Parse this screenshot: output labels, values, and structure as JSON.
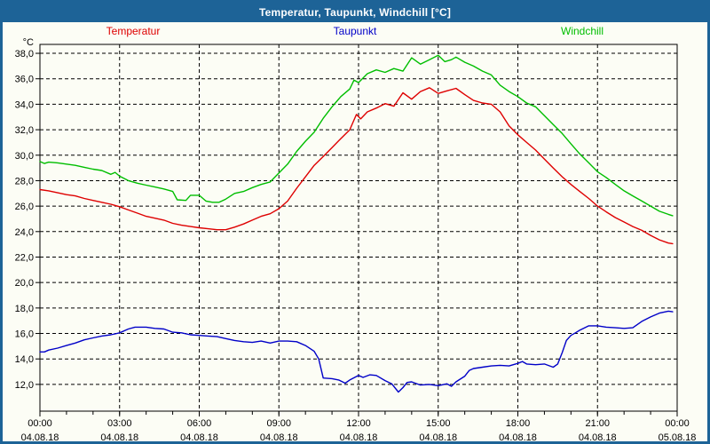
{
  "window": {
    "title": "Temperatur, Taupunkt, Windchill [°C]"
  },
  "colors": {
    "titlebar": "#1D6397",
    "window_border": "#1D6397",
    "background": "#FCFDF5",
    "axis": "#000000",
    "grid": "#000000",
    "temperatur": "#DE0000",
    "taupunkt": "#0000C8",
    "windchill": "#00BE00"
  },
  "legend": {
    "items": [
      {
        "id": "temperatur",
        "label": "Temperatur",
        "color": "#DE0000"
      },
      {
        "id": "taupunkt",
        "label": "Taupunkt",
        "color": "#0000C8"
      },
      {
        "id": "windchill",
        "label": "Windchill",
        "color": "#00BE00"
      }
    ]
  },
  "chart_data": {
    "type": "line",
    "title": "Temperatur, Taupunkt, Windchill [°C]",
    "xlabel": "",
    "ylabel": "°C",
    "grid": "dashed",
    "legend_position": "top",
    "xlim_hours": [
      0,
      24
    ],
    "ylim": [
      9.9,
      38.7
    ],
    "minor_tick_every_hours": 1,
    "yticks": [
      {
        "value": 38,
        "label": "38,0"
      },
      {
        "value": 36,
        "label": "36,0"
      },
      {
        "value": 34,
        "label": "34,0"
      },
      {
        "value": 32,
        "label": "32,0"
      },
      {
        "value": 30,
        "label": "30,0"
      },
      {
        "value": 28,
        "label": "28,0"
      },
      {
        "value": 26,
        "label": "26,0"
      },
      {
        "value": 24,
        "label": "24,0"
      },
      {
        "value": 22,
        "label": "22,0"
      },
      {
        "value": 20,
        "label": "20,0"
      },
      {
        "value": 18,
        "label": "18,0"
      },
      {
        "value": 16,
        "label": "16,0"
      },
      {
        "value": 14,
        "label": "14,0"
      },
      {
        "value": 12,
        "label": "12,0"
      }
    ],
    "xticks": [
      {
        "hour": 0,
        "time": "00:00",
        "date": "04.08.18"
      },
      {
        "hour": 3,
        "time": "03:00",
        "date": "04.08.18"
      },
      {
        "hour": 6,
        "time": "06:00",
        "date": "04.08.18"
      },
      {
        "hour": 9,
        "time": "09:00",
        "date": "04.08.18"
      },
      {
        "hour": 12,
        "time": "12:00",
        "date": "04.08.18"
      },
      {
        "hour": 15,
        "time": "15:00",
        "date": "04.08.18"
      },
      {
        "hour": 18,
        "time": "18:00",
        "date": "04.08.18"
      },
      {
        "hour": 21,
        "time": "21:00",
        "date": "04.08.18"
      },
      {
        "hour": 24,
        "time": "00:00",
        "date": "05.08.18"
      }
    ],
    "series": [
      {
        "name": "Temperatur",
        "color": "#DE0000",
        "points": [
          [
            0,
            27.3
          ],
          [
            0.33,
            27.2
          ],
          [
            0.67,
            27.05
          ],
          [
            1,
            26.9
          ],
          [
            1.33,
            26.8
          ],
          [
            1.67,
            26.6
          ],
          [
            2,
            26.45
          ],
          [
            2.33,
            26.3
          ],
          [
            2.67,
            26.15
          ],
          [
            3,
            25.95
          ],
          [
            3.33,
            25.7
          ],
          [
            3.67,
            25.45
          ],
          [
            4,
            25.2
          ],
          [
            4.33,
            25.05
          ],
          [
            4.67,
            24.9
          ],
          [
            5,
            24.65
          ],
          [
            5.33,
            24.5
          ],
          [
            5.67,
            24.4
          ],
          [
            6,
            24.3
          ],
          [
            6.33,
            24.22
          ],
          [
            6.67,
            24.15
          ],
          [
            7,
            24.15
          ],
          [
            7.33,
            24.35
          ],
          [
            7.67,
            24.6
          ],
          [
            8,
            24.9
          ],
          [
            8.33,
            25.2
          ],
          [
            8.67,
            25.4
          ],
          [
            9,
            25.8
          ],
          [
            9.33,
            26.4
          ],
          [
            9.67,
            27.4
          ],
          [
            10,
            28.3
          ],
          [
            10.33,
            29.2
          ],
          [
            10.67,
            29.9
          ],
          [
            11,
            30.6
          ],
          [
            11.33,
            31.3
          ],
          [
            11.67,
            32.0
          ],
          [
            11.92,
            33.2
          ],
          [
            12.08,
            32.85
          ],
          [
            12.33,
            33.4
          ],
          [
            12.67,
            33.7
          ],
          [
            13,
            34.05
          ],
          [
            13.33,
            33.85
          ],
          [
            13.67,
            34.9
          ],
          [
            14,
            34.4
          ],
          [
            14.33,
            35.0
          ],
          [
            14.67,
            35.3
          ],
          [
            15,
            34.85
          ],
          [
            15.33,
            35.05
          ],
          [
            15.67,
            35.25
          ],
          [
            16,
            34.75
          ],
          [
            16.33,
            34.3
          ],
          [
            16.67,
            34.1
          ],
          [
            17,
            34.0
          ],
          [
            17.33,
            33.4
          ],
          [
            17.67,
            32.3
          ],
          [
            18,
            31.6
          ],
          [
            18.33,
            31.0
          ],
          [
            18.67,
            30.4
          ],
          [
            19,
            29.7
          ],
          [
            19.33,
            29.0
          ],
          [
            19.67,
            28.3
          ],
          [
            20,
            27.7
          ],
          [
            20.33,
            27.15
          ],
          [
            20.67,
            26.6
          ],
          [
            21,
            26.0
          ],
          [
            21.33,
            25.55
          ],
          [
            21.67,
            25.1
          ],
          [
            22,
            24.75
          ],
          [
            22.33,
            24.4
          ],
          [
            22.67,
            24.1
          ],
          [
            23,
            23.7
          ],
          [
            23.33,
            23.35
          ],
          [
            23.67,
            23.1
          ],
          [
            23.83,
            23.05
          ]
        ]
      },
      {
        "name": "Taupunkt",
        "color": "#0000C8",
        "points": [
          [
            0,
            14.55
          ],
          [
            0.17,
            14.55
          ],
          [
            0.33,
            14.7
          ],
          [
            0.67,
            14.85
          ],
          [
            1,
            15.05
          ],
          [
            1.33,
            15.25
          ],
          [
            1.67,
            15.5
          ],
          [
            2,
            15.65
          ],
          [
            2.33,
            15.8
          ],
          [
            2.67,
            15.9
          ],
          [
            3,
            16.05
          ],
          [
            3.33,
            16.35
          ],
          [
            3.58,
            16.5
          ],
          [
            4,
            16.5
          ],
          [
            4.33,
            16.4
          ],
          [
            4.67,
            16.35
          ],
          [
            5,
            16.1
          ],
          [
            5.33,
            16.05
          ],
          [
            5.67,
            15.9
          ],
          [
            6,
            15.85
          ],
          [
            6.33,
            15.8
          ],
          [
            6.67,
            15.75
          ],
          [
            7,
            15.6
          ],
          [
            7.33,
            15.45
          ],
          [
            7.67,
            15.35
          ],
          [
            8,
            15.3
          ],
          [
            8.33,
            15.4
          ],
          [
            8.67,
            15.25
          ],
          [
            9,
            15.4
          ],
          [
            9.33,
            15.4
          ],
          [
            9.67,
            15.35
          ],
          [
            10,
            15.05
          ],
          [
            10.33,
            14.6
          ],
          [
            10.5,
            14.0
          ],
          [
            10.67,
            12.5
          ],
          [
            11,
            12.45
          ],
          [
            11.25,
            12.35
          ],
          [
            11.5,
            12.1
          ],
          [
            11.67,
            12.35
          ],
          [
            12,
            12.7
          ],
          [
            12.17,
            12.55
          ],
          [
            12.42,
            12.75
          ],
          [
            12.67,
            12.7
          ],
          [
            13,
            12.3
          ],
          [
            13.25,
            12.05
          ],
          [
            13.5,
            11.4
          ],
          [
            13.67,
            11.75
          ],
          [
            13.83,
            12.15
          ],
          [
            14,
            12.2
          ],
          [
            14.33,
            11.95
          ],
          [
            14.67,
            12.0
          ],
          [
            15,
            11.9
          ],
          [
            15.33,
            12.05
          ],
          [
            15.5,
            11.85
          ],
          [
            15.67,
            12.2
          ],
          [
            16,
            12.65
          ],
          [
            16.17,
            13.1
          ],
          [
            16.33,
            13.25
          ],
          [
            16.67,
            13.35
          ],
          [
            17,
            13.45
          ],
          [
            17.33,
            13.5
          ],
          [
            17.67,
            13.45
          ],
          [
            18,
            13.65
          ],
          [
            18.17,
            13.8
          ],
          [
            18.33,
            13.6
          ],
          [
            18.67,
            13.55
          ],
          [
            19,
            13.6
          ],
          [
            19.33,
            13.35
          ],
          [
            19.5,
            13.6
          ],
          [
            19.67,
            14.5
          ],
          [
            19.83,
            15.45
          ],
          [
            20,
            15.85
          ],
          [
            20.17,
            16.05
          ],
          [
            20.33,
            16.25
          ],
          [
            20.67,
            16.6
          ],
          [
            21,
            16.6
          ],
          [
            21.33,
            16.5
          ],
          [
            21.67,
            16.45
          ],
          [
            22,
            16.4
          ],
          [
            22.33,
            16.45
          ],
          [
            22.67,
            16.95
          ],
          [
            23,
            17.3
          ],
          [
            23.33,
            17.6
          ],
          [
            23.67,
            17.75
          ],
          [
            23.83,
            17.7
          ]
        ]
      },
      {
        "name": "Windchill",
        "color": "#00BE00",
        "points": [
          [
            0,
            29.5
          ],
          [
            0.17,
            29.35
          ],
          [
            0.33,
            29.45
          ],
          [
            0.67,
            29.4
          ],
          [
            1,
            29.3
          ],
          [
            1.33,
            29.2
          ],
          [
            1.67,
            29.05
          ],
          [
            2,
            28.9
          ],
          [
            2.33,
            28.8
          ],
          [
            2.67,
            28.5
          ],
          [
            2.83,
            28.65
          ],
          [
            3,
            28.35
          ],
          [
            3.33,
            28.0
          ],
          [
            3.67,
            27.8
          ],
          [
            4,
            27.65
          ],
          [
            4.33,
            27.5
          ],
          [
            4.67,
            27.35
          ],
          [
            5,
            27.15
          ],
          [
            5.17,
            26.5
          ],
          [
            5.5,
            26.45
          ],
          [
            5.67,
            26.85
          ],
          [
            6,
            26.85
          ],
          [
            6.25,
            26.4
          ],
          [
            6.5,
            26.3
          ],
          [
            6.75,
            26.3
          ],
          [
            7,
            26.55
          ],
          [
            7.33,
            27.0
          ],
          [
            7.67,
            27.15
          ],
          [
            8,
            27.45
          ],
          [
            8.33,
            27.7
          ],
          [
            8.67,
            27.9
          ],
          [
            9,
            28.6
          ],
          [
            9.33,
            29.3
          ],
          [
            9.67,
            30.3
          ],
          [
            10,
            31.1
          ],
          [
            10.33,
            31.8
          ],
          [
            10.67,
            32.9
          ],
          [
            11,
            33.8
          ],
          [
            11.33,
            34.6
          ],
          [
            11.67,
            35.2
          ],
          [
            11.83,
            35.9
          ],
          [
            12,
            35.7
          ],
          [
            12.33,
            36.4
          ],
          [
            12.67,
            36.7
          ],
          [
            13,
            36.5
          ],
          [
            13.33,
            36.8
          ],
          [
            13.67,
            36.6
          ],
          [
            14,
            37.65
          ],
          [
            14.33,
            37.15
          ],
          [
            14.67,
            37.5
          ],
          [
            15,
            37.85
          ],
          [
            15.25,
            37.35
          ],
          [
            15.5,
            37.5
          ],
          [
            15.67,
            37.7
          ],
          [
            16,
            37.3
          ],
          [
            16.33,
            37.0
          ],
          [
            16.67,
            36.6
          ],
          [
            17,
            36.3
          ],
          [
            17.33,
            35.5
          ],
          [
            17.67,
            35.0
          ],
          [
            18,
            34.6
          ],
          [
            18.33,
            34.1
          ],
          [
            18.67,
            33.8
          ],
          [
            19,
            33.1
          ],
          [
            19.33,
            32.4
          ],
          [
            19.67,
            31.7
          ],
          [
            20,
            30.9
          ],
          [
            20.33,
            30.1
          ],
          [
            20.67,
            29.4
          ],
          [
            21,
            28.7
          ],
          [
            21.33,
            28.25
          ],
          [
            21.67,
            27.7
          ],
          [
            22,
            27.2
          ],
          [
            22.33,
            26.8
          ],
          [
            22.67,
            26.4
          ],
          [
            23,
            26.0
          ],
          [
            23.33,
            25.6
          ],
          [
            23.67,
            25.35
          ],
          [
            23.83,
            25.25
          ]
        ]
      }
    ]
  }
}
